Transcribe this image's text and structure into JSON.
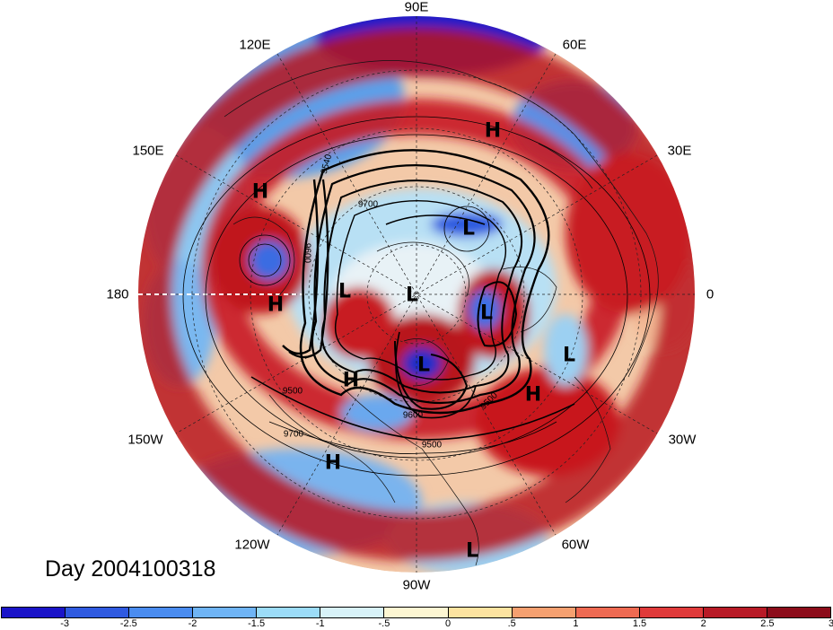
{
  "day_label": "Day 2004100318",
  "lon_labels": [
    {
      "text": "90E",
      "name": "lon-label-90e"
    },
    {
      "text": "120E",
      "name": "lon-label-120e"
    },
    {
      "text": "60E",
      "name": "lon-label-60e"
    },
    {
      "text": "150E",
      "name": "lon-label-150e"
    },
    {
      "text": "30E",
      "name": "lon-label-30e"
    },
    {
      "text": "180",
      "name": "lon-label-180"
    },
    {
      "text": "0",
      "name": "lon-label-0"
    },
    {
      "text": "150W",
      "name": "lon-label-150w"
    },
    {
      "text": "30W",
      "name": "lon-label-30w"
    },
    {
      "text": "120W",
      "name": "lon-label-120w"
    },
    {
      "text": "60W",
      "name": "lon-label-60w"
    },
    {
      "text": "90W",
      "name": "lon-label-90w"
    }
  ],
  "pressure_marks": [
    "H",
    "H",
    "H",
    "L",
    "L",
    "L",
    "L",
    "H",
    "L",
    "H",
    "L",
    "H",
    "L"
  ],
  "contour_labels": [
    "9540",
    "9700",
    "9600",
    "9500",
    "9500",
    "9700",
    "9500",
    "9600"
  ],
  "colorbar": {
    "colors": [
      "#1a14c8",
      "#2f5ae0",
      "#4a8cf0",
      "#6fb4f5",
      "#9cdcf8",
      "#d8f2f8",
      "#fdf6d2",
      "#fde3a0",
      "#f5a070",
      "#ee6a52",
      "#e03a3a",
      "#b81a26",
      "#8c0c1a"
    ],
    "ticks": [
      "-3",
      "-2.5",
      "-2",
      "-1.5",
      "-1",
      "-.5",
      "0",
      ".5",
      "1",
      "1.5",
      "2",
      "2.5",
      "3"
    ]
  }
}
